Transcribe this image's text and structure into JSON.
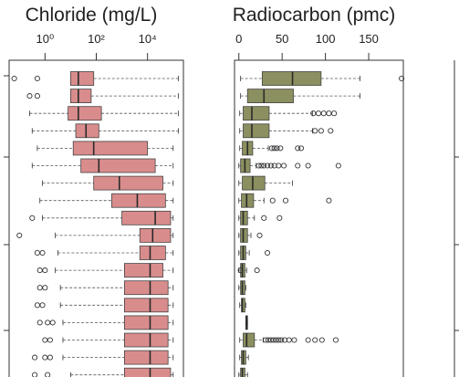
{
  "chart_data": [
    {
      "type": "boxplot",
      "title": "Chloride (mg/L)",
      "x_scale": "log10",
      "xlim_log10": [
        -1.4,
        5.4
      ],
      "tick_labels": [
        "10⁰",
        "10²",
        "10⁴"
      ],
      "tick_values_log10": [
        0,
        2,
        4
      ],
      "box_color": "#d98c8c",
      "rows": [
        {
          "q1": 1.0,
          "med": 1.3,
          "q3": 1.9,
          "whisker_hi": 5.2,
          "outliers": [
            -1.2,
            -0.3
          ]
        },
        {
          "q1": 1.0,
          "med": 1.3,
          "q3": 1.8,
          "whisker_hi": 5.2,
          "outliers": [
            -0.6,
            -0.3
          ]
        },
        {
          "q1": 0.9,
          "med": 1.3,
          "q3": 2.2,
          "whisker_lo": -0.6,
          "whisker_hi": 5.2,
          "outliers": []
        },
        {
          "q1": 1.2,
          "med": 1.6,
          "q3": 2.1,
          "whisker_lo": -0.5,
          "whisker_hi": 5.2,
          "outliers": []
        },
        {
          "q1": 1.1,
          "med": 1.9,
          "q3": 4.0,
          "whisker_lo": -0.3,
          "whisker_hi": 5.0,
          "outliers": []
        },
        {
          "q1": 1.4,
          "med": 2.1,
          "q3": 4.3,
          "whisker_lo": -0.5,
          "whisker_hi": 5.0,
          "outliers": []
        },
        {
          "q1": 1.9,
          "med": 2.9,
          "q3": 4.6,
          "whisker_lo": -0.1,
          "whisker_hi": 5.0,
          "outliers": []
        },
        {
          "q1": 2.6,
          "med": 3.6,
          "q3": 4.7,
          "whisker_lo": -0.2,
          "whisker_hi": 5.0,
          "outliers": []
        },
        {
          "q1": 3.0,
          "med": 4.3,
          "q3": 4.9,
          "whisker_lo": -0.1,
          "whisker_hi": 5.0,
          "outliers": [
            -0.5
          ]
        },
        {
          "q1": 3.7,
          "med": 4.2,
          "q3": 4.9,
          "whisker_lo": 0.4,
          "whisker_hi": 5.0,
          "outliers": [
            -1.0
          ]
        },
        {
          "q1": 3.7,
          "med": 4.1,
          "q3": 4.7,
          "whisker_lo": 0.5,
          "whisker_hi": 5.0,
          "outliers": [
            -0.3,
            -0.1
          ]
        },
        {
          "q1": 3.1,
          "med": 4.1,
          "q3": 4.6,
          "whisker_lo": 0.4,
          "whisker_hi": 5.0,
          "outliers": [
            -0.2,
            0.0
          ]
        },
        {
          "q1": 3.1,
          "med": 4.1,
          "q3": 4.8,
          "whisker_lo": 0.6,
          "whisker_hi": 5.0,
          "outliers": [
            -0.2,
            0.0
          ]
        },
        {
          "q1": 3.1,
          "med": 4.1,
          "q3": 4.8,
          "whisker_lo": 0.6,
          "whisker_hi": 5.0,
          "outliers": [
            -0.3,
            -0.1
          ]
        },
        {
          "q1": 3.1,
          "med": 4.1,
          "q3": 4.8,
          "whisker_lo": 0.7,
          "whisker_hi": 5.0,
          "outliers": [
            -0.2,
            0.1,
            0.3
          ]
        },
        {
          "q1": 3.1,
          "med": 4.1,
          "q3": 4.8,
          "whisker_lo": 0.7,
          "whisker_hi": 5.0,
          "outliers": [
            0.0,
            0.2
          ]
        },
        {
          "q1": 3.1,
          "med": 4.1,
          "q3": 4.8,
          "whisker_lo": 0.7,
          "whisker_hi": 5.0,
          "outliers": [
            -0.4,
            0.0,
            0.2
          ]
        },
        {
          "q1": 3.1,
          "med": 4.1,
          "q3": 4.9,
          "whisker_lo": 1.0,
          "whisker_hi": 5.0,
          "outliers": [
            -0.4,
            0.1
          ]
        }
      ]
    },
    {
      "type": "boxplot",
      "title": "Radiocarbon (pmc)",
      "x_scale": "linear",
      "xlim": [
        -5,
        190
      ],
      "tick_labels": [
        "0",
        "50",
        "100",
        "150"
      ],
      "tick_values": [
        0,
        50,
        100,
        150
      ],
      "box_color": "#8c8f5f",
      "rows": [
        {
          "q1": 27,
          "med": 62,
          "q3": 95,
          "whisker_lo": 2,
          "whisker_hi": 140,
          "outliers": [
            188
          ]
        },
        {
          "q1": 10,
          "med": 29,
          "q3": 63,
          "whisker_lo": 2,
          "whisker_hi": 140,
          "outliers": []
        },
        {
          "q1": 5,
          "med": 15,
          "q3": 35,
          "whisker_lo": 1,
          "whisker_hi": 85,
          "outliers": [
            86,
            92,
            98,
            104,
            110
          ]
        },
        {
          "q1": 5,
          "med": 15,
          "q3": 35,
          "whisker_lo": 1,
          "whisker_hi": 85,
          "outliers": [
            88,
            95,
            106
          ]
        },
        {
          "q1": 4,
          "med": 10,
          "q3": 16,
          "whisker_lo": 1,
          "whisker_hi": 34,
          "outliers": [
            38,
            41,
            44,
            48,
            68,
            72
          ]
        },
        {
          "q1": 2,
          "med": 7,
          "q3": 13,
          "whisker_lo": 0,
          "whisker_hi": 20,
          "outliers": [
            23,
            26,
            29,
            33,
            37,
            41,
            46,
            52,
            68,
            80,
            115
          ]
        },
        {
          "q1": 4,
          "med": 16,
          "q3": 30,
          "whisker_lo": 0,
          "whisker_hi": 62,
          "outliers": []
        },
        {
          "q1": 3,
          "med": 9,
          "q3": 17,
          "whisker_lo": 0,
          "whisker_hi": 29,
          "outliers": [
            39,
            54,
            104
          ]
        },
        {
          "q1": 2,
          "med": 5,
          "q3": 10,
          "whisker_lo": 0,
          "whisker_hi": 18,
          "outliers": [
            29,
            47
          ]
        },
        {
          "q1": 2,
          "med": 5,
          "q3": 10,
          "whisker_lo": 0,
          "whisker_hi": 14,
          "outliers": [
            24
          ]
        },
        {
          "q1": 2,
          "med": 5,
          "q3": 8,
          "whisker_lo": 0,
          "whisker_hi": 12,
          "outliers": [
            33
          ]
        },
        {
          "q1": 2,
          "med": 4,
          "q3": 7,
          "whisker_lo": 0,
          "whisker_hi": 9,
          "outliers": [
            2,
            21
          ]
        },
        {
          "q1": 2,
          "med": 4,
          "q3": 7,
          "whisker_lo": 0,
          "whisker_hi": 8,
          "outliers": []
        },
        {
          "q1": 3,
          "med": 4,
          "q3": 7,
          "whisker_lo": 1,
          "whisker_hi": 8,
          "outliers": []
        },
        {
          "q1": 8,
          "med": 9,
          "q3": 10,
          "whisker_lo": 8,
          "whisker_hi": 10,
          "outliers": []
        },
        {
          "q1": 5,
          "med": 9,
          "q3": 18,
          "whisker_lo": 1,
          "whisker_hi": 28,
          "outliers": [
            31,
            34,
            37,
            40,
            43,
            46,
            49,
            53,
            58,
            64,
            80,
            88,
            96,
            112
          ]
        },
        {
          "q1": 3,
          "med": 5,
          "q3": 8,
          "whisker_lo": 1,
          "whisker_hi": 11,
          "outliers": []
        },
        {
          "q1": 2,
          "med": 4,
          "q3": 7,
          "whisker_lo": 0,
          "whisker_hi": 10,
          "outliers": []
        }
      ]
    }
  ]
}
